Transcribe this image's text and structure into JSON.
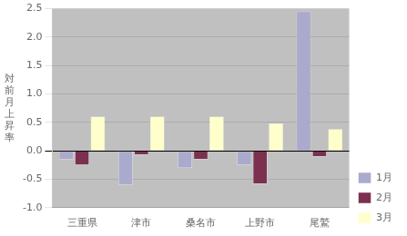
{
  "chart_data": {
    "type": "bar",
    "categories": [
      "三重県",
      "津市",
      "桑名市",
      "上野市",
      "尾鷲"
    ],
    "series": [
      {
        "name": "1月",
        "color": "#aaaacc",
        "values": [
          -0.15,
          -0.6,
          -0.3,
          -0.25,
          2.45
        ]
      },
      {
        "name": "2月",
        "color": "#7b3050",
        "values": [
          -0.25,
          -0.07,
          -0.15,
          -0.58,
          -0.1
        ]
      },
      {
        "name": "3月",
        "color": "#ffffcc",
        "values": [
          0.6,
          0.6,
          0.6,
          0.48,
          0.38
        ]
      }
    ],
    "y_label": "対\n前\n月\n上\n昇\n率",
    "ylim": [
      -1.0,
      2.5
    ],
    "yticks": [
      {
        "value": -1.0,
        "label": "-1.0"
      },
      -0.5,
      {
        "value": 0.0,
        "label": "0.0"
      },
      0.5,
      {
        "value": 1.0,
        "label": "1.0"
      },
      1.5,
      {
        "value": 2.0,
        "label": "2.0"
      },
      2.5
    ],
    "grid": true,
    "legend": "lower right"
  }
}
